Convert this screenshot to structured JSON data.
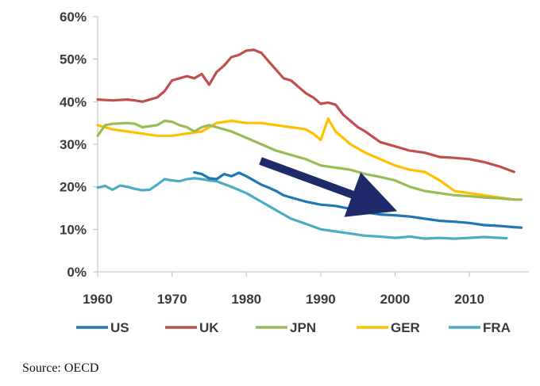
{
  "chart_data": {
    "type": "line",
    "title": "",
    "xlabel": "",
    "ylabel": "",
    "xlim": [
      1960,
      2018
    ],
    "ylim": [
      0,
      60
    ],
    "x_ticks": [
      "1960",
      "1970",
      "1980",
      "1990",
      "2000",
      "2010"
    ],
    "y_ticks": [
      "0%",
      "10%",
      "20%",
      "30%",
      "40%",
      "50%",
      "60%"
    ],
    "legend": "bottom",
    "annotation": "downward trend arrow",
    "series": [
      {
        "name": "US",
        "color": "#1F77B4",
        "x": [
          1973,
          1974,
          1975,
          1976,
          1977,
          1978,
          1979,
          1980,
          1981,
          1982,
          1983,
          1984,
          1985,
          1986,
          1988,
          1990,
          1992,
          1994,
          1996,
          1998,
          2000,
          2002,
          2004,
          2006,
          2008,
          2010,
          2012,
          2014,
          2016,
          2017
        ],
        "values": [
          23.4,
          23,
          22,
          21.8,
          23,
          22.5,
          23.3,
          22.5,
          21.5,
          20.5,
          19.8,
          19,
          18,
          17.5,
          16.5,
          15.8,
          15.5,
          14.8,
          14,
          13.5,
          13.3,
          13,
          12.5,
          12,
          11.8,
          11.5,
          11,
          10.8,
          10.5,
          10.4
        ]
      },
      {
        "name": "UK",
        "color": "#C0504D",
        "x": [
          1960,
          1962,
          1964,
          1965,
          1966,
          1968,
          1969,
          1970,
          1971,
          1972,
          1973,
          1974,
          1975,
          1976,
          1977,
          1978,
          1979,
          1980,
          1981,
          1982,
          1983,
          1984,
          1985,
          1986,
          1987,
          1988,
          1989,
          1990,
          1991,
          1992,
          1993,
          1994,
          1995,
          1996,
          1998,
          2000,
          2002,
          2004,
          2006,
          2008,
          2010,
          2012,
          2014,
          2016
        ],
        "values": [
          40.5,
          40.3,
          40.5,
          40.3,
          40,
          41,
          42.5,
          45,
          45.5,
          46,
          45.5,
          46.5,
          44,
          47,
          48.5,
          50.5,
          51,
          52,
          52.2,
          51.5,
          49.5,
          47.5,
          45.5,
          45,
          43.5,
          42,
          41,
          39.5,
          39.8,
          39.3,
          37,
          35.5,
          34,
          33,
          30.5,
          29.5,
          28.5,
          28,
          27,
          26.8,
          26.5,
          25.8,
          24.8,
          23.5
        ]
      },
      {
        "name": "JPN",
        "color": "#9BBB59",
        "x": [
          1960,
          1961,
          1962,
          1964,
          1965,
          1966,
          1968,
          1969,
          1970,
          1971,
          1972,
          1973,
          1974,
          1975,
          1976,
          1978,
          1980,
          1982,
          1984,
          1986,
          1988,
          1990,
          1992,
          1994,
          1996,
          1998,
          2000,
          2002,
          2004,
          2006,
          2008,
          2010,
          2012,
          2014,
          2016,
          2017
        ],
        "values": [
          32,
          34.5,
          34.8,
          35,
          34.8,
          34,
          34.5,
          35.5,
          35.3,
          34.5,
          34,
          33,
          34,
          34.5,
          34,
          33,
          31.5,
          30,
          28.5,
          27.5,
          26.5,
          25,
          24.5,
          24,
          23,
          22.3,
          21.5,
          20,
          19,
          18.5,
          18,
          17.8,
          17.5,
          17.3,
          17,
          17
        ]
      },
      {
        "name": "GER",
        "color": "#FFC000",
        "x": [
          1960,
          1962,
          1964,
          1966,
          1968,
          1970,
          1972,
          1974,
          1976,
          1978,
          1980,
          1982,
          1984,
          1986,
          1988,
          1989,
          1990,
          1991,
          1992,
          1993,
          1994,
          1996,
          1998,
          2000,
          2002,
          2004,
          2006,
          2008,
          2010,
          2012,
          2014,
          2016
        ],
        "values": [
          34.5,
          33.5,
          33,
          32.5,
          32,
          32,
          32.5,
          33,
          35,
          35.5,
          35,
          35,
          34.5,
          34,
          33.5,
          32.5,
          31,
          36,
          33,
          31.5,
          30,
          28,
          26.5,
          25,
          24,
          23.5,
          21.5,
          19,
          18.5,
          18,
          17.5,
          17
        ]
      },
      {
        "name": "FRA",
        "color": "#4BACC6",
        "x": [
          1960,
          1961,
          1962,
          1963,
          1964,
          1965,
          1966,
          1967,
          1968,
          1969,
          1970,
          1971,
          1972,
          1973,
          1974,
          1975,
          1976,
          1978,
          1980,
          1982,
          1984,
          1986,
          1988,
          1990,
          1992,
          1994,
          1996,
          1998,
          2000,
          2002,
          2004,
          2006,
          2008,
          2010,
          2012,
          2014,
          2015
        ],
        "values": [
          19.8,
          20.2,
          19.3,
          20.3,
          20,
          19.5,
          19.2,
          19.3,
          20.5,
          21.8,
          21.5,
          21.3,
          21.8,
          22,
          21.8,
          21.5,
          21.3,
          20,
          18.5,
          16.5,
          14.5,
          12.5,
          11.3,
          10,
          9.5,
          9,
          8.5,
          8.3,
          8,
          8.3,
          7.8,
          8,
          7.8,
          8,
          8.2,
          8,
          7.9
        ]
      }
    ]
  },
  "source": "Source: OECD"
}
